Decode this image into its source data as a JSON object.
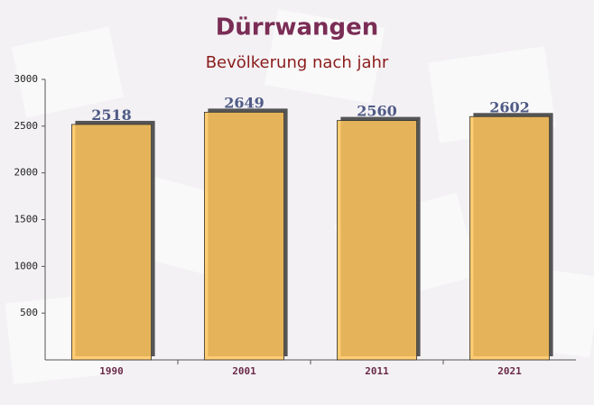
{
  "chart_data": {
    "type": "bar",
    "title": "Dürrwangen",
    "subtitle": "Bevölkerung nach jahr",
    "categories": [
      "1990",
      "2001",
      "2011",
      "2021"
    ],
    "values": [
      2518,
      2649,
      2560,
      2602
    ],
    "color": "#ffc55c",
    "ylim": [
      0,
      3000
    ],
    "yticks": [
      500,
      1000,
      1500,
      2000,
      2500,
      3000
    ]
  }
}
